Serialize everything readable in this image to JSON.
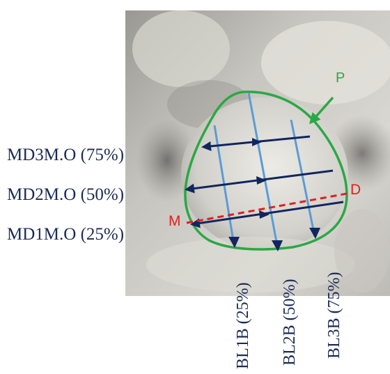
{
  "left_labels": [
    "MD3M.O (75%)",
    "MD2M.O (50%)",
    "MD1M.O (25%)"
  ],
  "bottom_labels": [
    "BL1B (25%)",
    "BL2B (50%)",
    "BL3B (75%)"
  ],
  "points": {
    "m": "M",
    "d": "D",
    "p": "P"
  },
  "colors": {
    "outline": "#2aa845",
    "md_arrows": "#12265e",
    "bl_lines": "#5b9bd5",
    "reference_line": "#e02020",
    "text": "#1b2a55"
  }
}
